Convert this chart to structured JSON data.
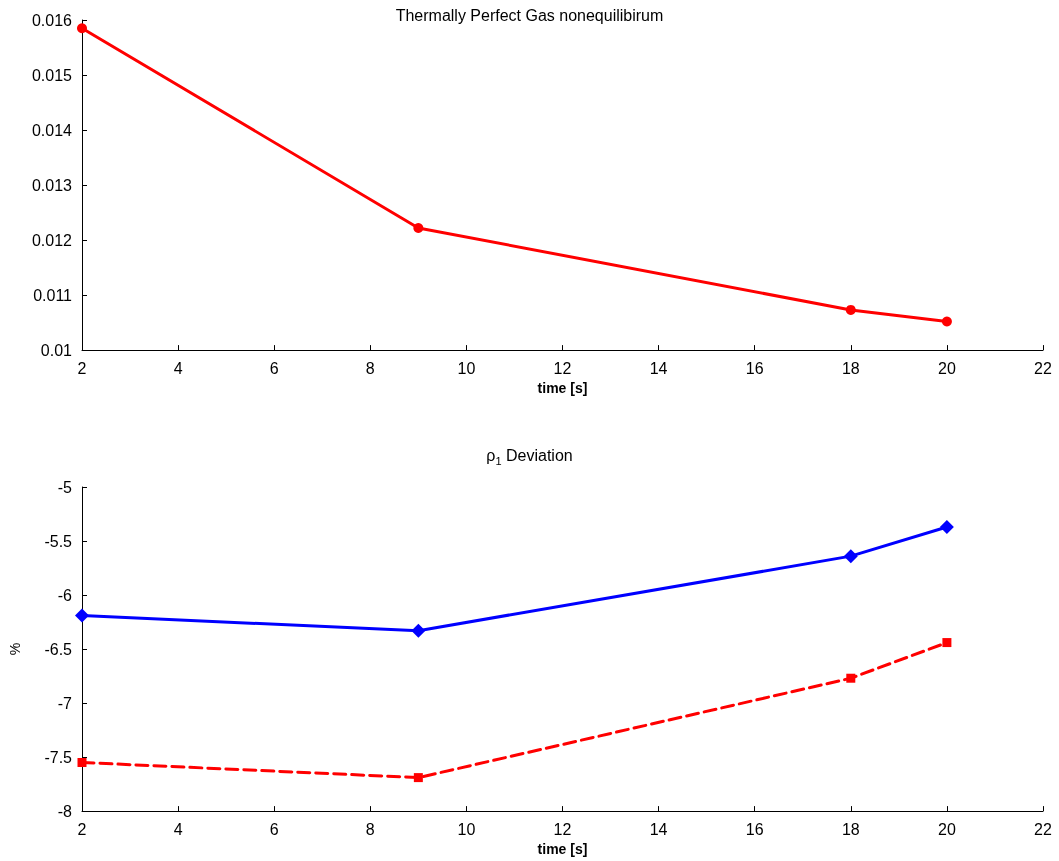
{
  "chart_data": [
    {
      "type": "line",
      "title": "Thermally Perfect Gas nonequilibirum",
      "xlabel": "time [s]",
      "x": [
        2,
        9,
        18,
        20
      ],
      "series": [
        {
          "color": "#ff0000",
          "values": [
            0.01585,
            0.01222,
            0.01073,
            0.01052
          ]
        }
      ],
      "xlim": [
        2,
        22
      ],
      "xticks": [
        2,
        4,
        6,
        8,
        10,
        12,
        14,
        16,
        18,
        20,
        22
      ],
      "ylim": [
        0.01,
        0.016
      ],
      "yticks": [
        0.01,
        0.011,
        0.012,
        0.013,
        0.014,
        0.015,
        0.016
      ],
      "marker": "circle",
      "line_style": "solid",
      "grid": false
    },
    {
      "type": "line",
      "title": "ρ$_{1}$ Deviation",
      "xlabel": "time [s]",
      "ylabel": "%",
      "x": [
        2,
        9,
        18,
        20
      ],
      "series": [
        {
          "color": "#0000ff",
          "values": [
            -6.19,
            -6.33,
            -5.64,
            -5.37
          ],
          "marker": "diamond",
          "line_style": "solid"
        },
        {
          "color": "#ff0000",
          "values": [
            -7.55,
            -7.69,
            -6.77,
            -6.44
          ],
          "marker": "square",
          "line_style": "dashed"
        }
      ],
      "xlim": [
        2,
        22
      ],
      "xticks": [
        2,
        4,
        6,
        8,
        10,
        12,
        14,
        16,
        18,
        20,
        22
      ],
      "ylim": [
        -8,
        -5
      ],
      "yticks": [
        -8,
        -7.5,
        -7,
        -6.5,
        -6,
        -5.5,
        -5
      ],
      "grid": false
    }
  ]
}
